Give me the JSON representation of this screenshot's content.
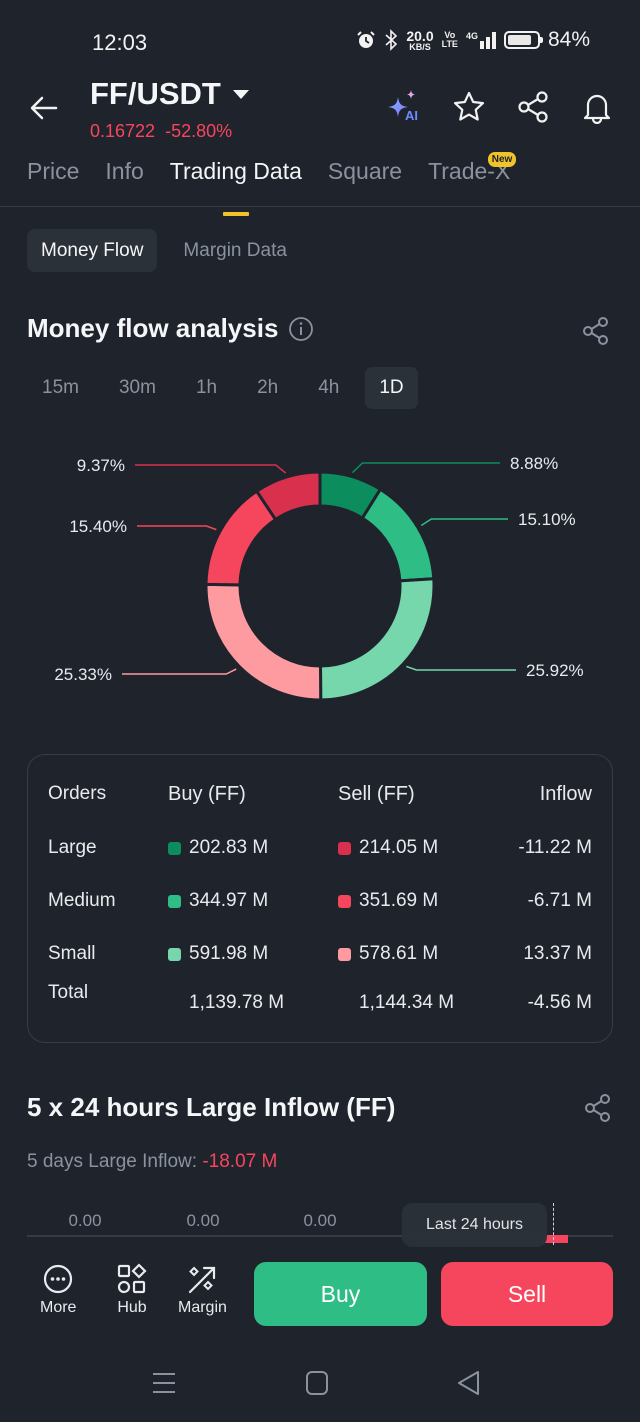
{
  "status_bar": {
    "time": "12:03",
    "net_speed": "20.0",
    "net_speed_unit": "KB/S",
    "volte_top": "Vo",
    "volte_bottom": "LTE",
    "network": "4G",
    "battery": "84%",
    "battery_level": 0.84,
    "icons": [
      "alarm-icon",
      "bluetooth-icon",
      "signal-icon",
      "battery-icon"
    ]
  },
  "header": {
    "pair": "FF/USDT",
    "price": "0.16722",
    "change": "-52.80%",
    "price_color": "#f6465d",
    "icons": [
      "ai-sparkle-icon",
      "star-icon",
      "share-icon",
      "bell-icon"
    ],
    "ai_label": "AI"
  },
  "tabs": [
    {
      "label": "Price",
      "active": false
    },
    {
      "label": "Info",
      "active": false
    },
    {
      "label": "Trading Data",
      "active": true
    },
    {
      "label": "Square",
      "active": false
    },
    {
      "label": "Trade-X",
      "active": false,
      "badge": "New"
    }
  ],
  "subtabs": [
    {
      "label": "Money Flow",
      "active": true
    },
    {
      "label": "Margin Data",
      "active": false
    }
  ],
  "money_flow": {
    "title": "Money flow analysis",
    "intervals": [
      {
        "label": "15m",
        "active": false
      },
      {
        "label": "30m",
        "active": false
      },
      {
        "label": "1h",
        "active": false
      },
      {
        "label": "2h",
        "active": false
      },
      {
        "label": "4h",
        "active": false
      },
      {
        "label": "1D",
        "active": true
      }
    ]
  },
  "chart_data": {
    "type": "pie",
    "donut": true,
    "title": "Money flow analysis",
    "direction": "clockwise from top",
    "slices": [
      {
        "name": "Large Buy",
        "value": 8.88,
        "label": "8.88%",
        "color": "#0b8d5d"
      },
      {
        "name": "Medium Buy",
        "value": 15.1,
        "label": "15.10%",
        "color": "#2ebd85"
      },
      {
        "name": "Small Buy",
        "value": 25.92,
        "label": "25.92%",
        "color": "#76d7ac"
      },
      {
        "name": "Small Sell",
        "value": 25.33,
        "label": "25.33%",
        "color": "#fe9ba0"
      },
      {
        "name": "Medium Sell",
        "value": 15.4,
        "label": "15.40%",
        "color": "#f6465d"
      },
      {
        "name": "Large Sell",
        "value": 9.37,
        "label": "9.37%",
        "color": "#d9304e"
      }
    ]
  },
  "orders_table": {
    "headers": [
      "Orders",
      "Buy (FF)",
      "Sell (FF)",
      "Inflow"
    ],
    "rows": [
      {
        "order": "Large",
        "buy": "202.83 M",
        "sell": "214.05 M",
        "inflow": "-11.22 M",
        "buy_color": "#0b8d5d",
        "sell_color": "#d9304e"
      },
      {
        "order": "Medium",
        "buy": "344.97 M",
        "sell": "351.69 M",
        "inflow": "-6.71 M",
        "buy_color": "#2ebd85",
        "sell_color": "#f6465d"
      },
      {
        "order": "Small",
        "buy": "591.98 M",
        "sell": "578.61 M",
        "inflow": "13.37 M",
        "buy_color": "#76d7ac",
        "sell_color": "#fe9ba0"
      }
    ],
    "total": {
      "order": "Total",
      "buy": "1,139.78 M",
      "sell": "1,144.34 M",
      "inflow": "-4.56 M"
    }
  },
  "large_inflow": {
    "title": "5 x 24 hours Large Inflow (FF)",
    "five_days_label": "5 days Large Inflow:",
    "five_days_value": "-18.07 M",
    "bar_values": [
      "0.00",
      "0.00",
      "0.00"
    ],
    "tooltip": "Last 24 hours",
    "last_bar_color": "#f6465d"
  },
  "action_bar": {
    "more": "More",
    "hub": "Hub",
    "margin": "Margin",
    "buy": "Buy",
    "sell": "Sell",
    "buy_color": "#2ebd85",
    "sell_color": "#f6465d"
  }
}
